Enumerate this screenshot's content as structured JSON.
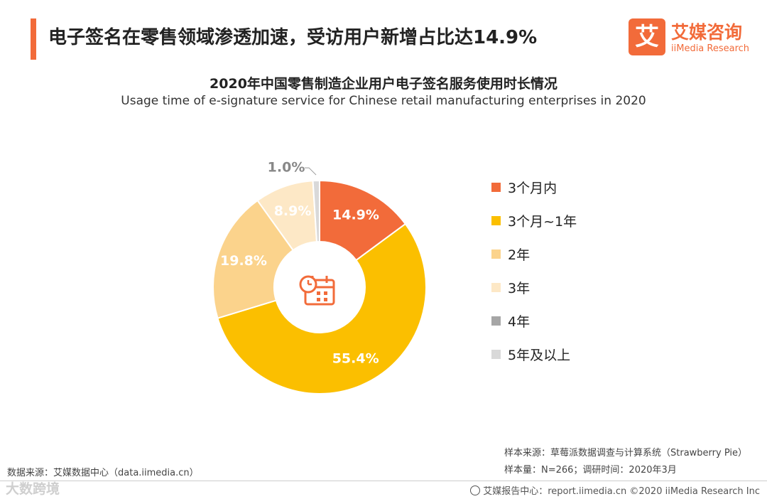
{
  "headline": "电子签名在零售领域渗透加速，受访用户新增占比达14.9%",
  "logo": {
    "mark": "艾",
    "name_cn": "艾媒咨询",
    "name_en": "iiMedia Research"
  },
  "chart_data": {
    "type": "pie",
    "variant": "donut",
    "title": "2020年中国零售制造企业用户电子签名服务使用时长情况",
    "subtitle": "Usage time of e-signature service for Chinese retail manufacturing enterprises in 2020",
    "categories": [
      "3个月内",
      "3个月~1年",
      "2年",
      "3年",
      "4年",
      "5年及以上"
    ],
    "values": [
      14.9,
      55.4,
      19.8,
      8.9,
      0.0,
      1.0
    ],
    "labels": [
      "14.9%",
      "55.4%",
      "19.8%",
      "8.9%",
      "",
      "1.0%"
    ],
    "colors": [
      "#f26b3a",
      "#fbbf00",
      "#fbd38c",
      "#fde8c6",
      "#a6a6a6",
      "#d9d9d9"
    ],
    "legend_position": "right"
  },
  "footer": {
    "source": "数据来源：艾媒数据中心（data.iimedia.cn）",
    "sample_source": "样本来源：草莓派数据调查与计算系统（Strawberry Pie）",
    "sample_size": "样本量：N=266；调研时间：2020年3月",
    "copyright": "艾媒报告中心：report.iimedia.cn   ©2020  iiMedia Research  Inc",
    "watermark": "大数跨境"
  }
}
